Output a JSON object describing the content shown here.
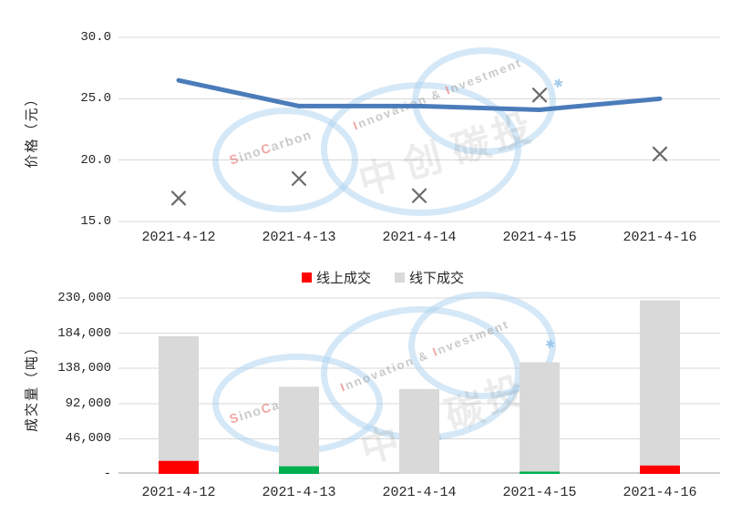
{
  "price_chart": {
    "y_axis_title": "价格（元）",
    "y_tick_labels": [
      "30.0",
      "25.0",
      "20.0",
      "15.0"
    ],
    "x_labels": [
      "2021-4-12",
      "2021-4-13",
      "2021-4-14",
      "2021-4-15",
      "2021-4-16"
    ]
  },
  "legend": {
    "online_label": "线上成交",
    "offline_label": "线下成交",
    "online_color": "#FF0000",
    "offline_color": "#D9D9D9"
  },
  "volume_chart": {
    "y_axis_title": "成交量（吨）",
    "y_tick_labels": [
      "230,000",
      "184,000",
      "138,000",
      "92,000",
      "46,000",
      "-"
    ],
    "x_labels": [
      "2021-4-12",
      "2021-4-13",
      "2021-4-14",
      "2021-4-15",
      "2021-4-16"
    ]
  },
  "watermark": {
    "brand": "SinoCarbon",
    "tagline": "Innovation & Investment",
    "cn_chars": [
      "中",
      "创",
      "碳",
      "投"
    ],
    "sparkle": "✱"
  },
  "chart_data": [
    {
      "type": "line",
      "title": "",
      "categories": [
        "2021-4-12",
        "2021-4-13",
        "2021-4-14",
        "2021-4-15",
        "2021-4-16"
      ],
      "series": [
        {
          "id": "price-line",
          "type": "line",
          "values": [
            26.5,
            24.4,
            24.4,
            24.1,
            25.0
          ],
          "color": "#4B7CBA"
        },
        {
          "id": "price-x-markers",
          "type": "scatter",
          "marker": "x",
          "values": [
            16.9,
            18.5,
            17.1,
            25.3,
            20.5
          ],
          "color": "#6B6B6B"
        }
      ],
      "xlabel": "",
      "ylabel": "价格（元）",
      "ylim": [
        15,
        30
      ],
      "yticks": [
        30,
        25,
        20,
        15
      ],
      "grid": true,
      "gridline_color": "#D9D9D9"
    },
    {
      "type": "bar",
      "stacked": true,
      "title": "",
      "categories": [
        "2021-4-12",
        "2021-4-13",
        "2021-4-14",
        "2021-4-15",
        "2021-4-16"
      ],
      "series": [
        {
          "id": "online-volume",
          "name": "线上成交",
          "values": [
            17000,
            10000,
            0,
            3000,
            11000
          ],
          "colors": [
            "#FF0000",
            "#00B050",
            null,
            "#00B050",
            "#FF0000"
          ],
          "legend_color": "#FF0000"
        },
        {
          "id": "offline-volume",
          "name": "线下成交",
          "values": [
            163000,
            104000,
            111000,
            143000,
            216000
          ],
          "color": "#D9D9D9"
        }
      ],
      "totals": [
        180000,
        114000,
        111000,
        146000,
        227000
      ],
      "xlabel": "",
      "ylabel": "成交量（吨）",
      "ylim": [
        0,
        230000
      ],
      "yticks": [
        230000,
        184000,
        138000,
        92000,
        46000,
        0
      ],
      "grid": true,
      "gridline_color": "#D9D9D9",
      "legend_position": "top-center"
    }
  ]
}
